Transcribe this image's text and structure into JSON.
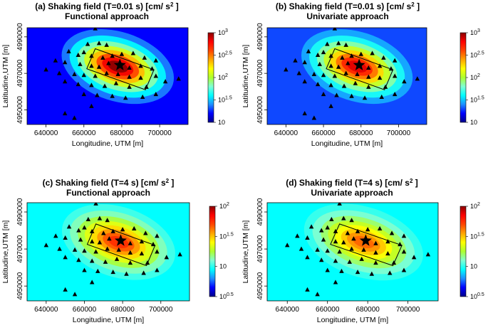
{
  "figure": {
    "colormap": [
      "#00008b",
      "#0000ff",
      "#1e90ff",
      "#00ffff",
      "#7fffd4",
      "#adff2f",
      "#ffff00",
      "#ffa500",
      "#ff4500",
      "#ff0000",
      "#8b0000"
    ]
  },
  "chart_data": [
    {
      "id": "a",
      "type": "heatmap",
      "title_line1": "(a) Shaking field (T=0.01 s) [cm/ s",
      "title_sup": "2",
      "title_end": " ]",
      "title_line2": "Functional approach",
      "xlabel": "Longitudine, UTM [m]",
      "ylabel": "Latitudine,UTM [m]",
      "xlim": [
        630000,
        715000
      ],
      "ylim": [
        4942000,
        4995000
      ],
      "xticks": [
        640000,
        660000,
        680000,
        700000
      ],
      "xtick_labels": [
        "640000",
        "660000",
        "680000",
        "700000"
      ],
      "yticks": [
        4950000,
        4970000,
        4990000
      ],
      "ytick_labels": [
        "4950000",
        "4970000",
        "4990000"
      ],
      "colorbar": {
        "log_min": 1,
        "log_max": 3,
        "ticks": [
          1,
          1.5,
          2,
          2.5,
          3
        ],
        "base_labels": [
          "10",
          "10",
          "10",
          "10",
          "10"
        ],
        "exp_labels": [
          "",
          "1.5",
          "2",
          "2.5",
          "3"
        ]
      },
      "peak_log": 3.0,
      "floor_log": 1.2,
      "epicenter": [
        679000,
        4974500
      ]
    },
    {
      "id": "b",
      "type": "heatmap",
      "title_line1": "(b) Shaking field (T=0.01 s) [cm/ s",
      "title_sup": "2",
      "title_end": " ]",
      "title_line2": "Univariate approach",
      "xlabel": "Longitudine, UTM [m]",
      "ylabel": "Latitudine,UTM [m]",
      "xlim": [
        630000,
        715000
      ],
      "ylim": [
        4942000,
        4995000
      ],
      "xticks": [
        640000,
        660000,
        680000,
        700000
      ],
      "xtick_labels": [
        "640000",
        "660000",
        "680000",
        "700000"
      ],
      "yticks": [
        4950000,
        4970000,
        4990000
      ],
      "ytick_labels": [
        "4950000",
        "4970000",
        "4990000"
      ],
      "colorbar": {
        "log_min": 1,
        "log_max": 3,
        "ticks": [
          1,
          1.5,
          2,
          2.5,
          3
        ],
        "base_labels": [
          "10",
          "10",
          "10",
          "10",
          "10"
        ],
        "exp_labels": [
          "",
          "1.5",
          "2",
          "2.5",
          "3"
        ]
      },
      "peak_log": 2.85,
      "floor_log": 1.3,
      "epicenter": [
        679000,
        4974500
      ]
    },
    {
      "id": "c",
      "type": "heatmap",
      "title_line1": "(c) Shaking field (T=4 s) [cm/ s",
      "title_sup": "2",
      "title_end": " ]",
      "title_line2": "Functional approach",
      "xlabel": "Longitudine, UTM [m]",
      "ylabel": "Latitudine,UTM [m]",
      "xlim": [
        630000,
        715000
      ],
      "ylim": [
        4942000,
        4995000
      ],
      "xticks": [
        640000,
        660000,
        680000,
        700000
      ],
      "xtick_labels": [
        "640000",
        "660000",
        "680000",
        "700000"
      ],
      "yticks": [
        4950000,
        4970000,
        4990000
      ],
      "ytick_labels": [
        "4950000",
        "4970000",
        "4990000"
      ],
      "colorbar": {
        "log_min": 0.5,
        "log_max": 2,
        "ticks": [
          0.5,
          1,
          1.5,
          2
        ],
        "base_labels": [
          "10",
          "10",
          "10",
          "10"
        ],
        "exp_labels": [
          "0.5",
          "",
          "1.5",
          "2"
        ]
      },
      "peak_log": 1.75,
      "floor_log": 0.95,
      "epicenter": [
        679000,
        4974500
      ]
    },
    {
      "id": "d",
      "type": "heatmap",
      "title_line1": "(d) Shaking field (T=4 s) [cm/ s",
      "title_sup": "2",
      "title_end": " ]",
      "title_line2": "Univariate approach",
      "xlabel": "Longitudine, UTM [m]",
      "ylabel": "Latitudine,UTM [m]",
      "xlim": [
        630000,
        715000
      ],
      "ylim": [
        4942000,
        4995000
      ],
      "xticks": [
        640000,
        660000,
        680000,
        700000
      ],
      "xtick_labels": [
        "640000",
        "660000",
        "680000",
        "700000"
      ],
      "yticks": [
        4950000,
        4970000,
        4990000
      ],
      "ytick_labels": [
        "4950000",
        "4970000",
        "4990000"
      ],
      "colorbar": {
        "log_min": 0.5,
        "log_max": 2,
        "ticks": [
          0.5,
          1,
          1.5,
          2
        ],
        "base_labels": [
          "10",
          "10",
          "10",
          "10"
        ],
        "exp_labels": [
          "0.5",
          "",
          "1.5",
          "2"
        ]
      },
      "peak_log": 1.65,
      "floor_log": 0.95,
      "epicenter": [
        679000,
        4974500
      ]
    }
  ],
  "stations": [
    [
      666000,
      4994500
    ],
    [
      662000,
      4986000
    ],
    [
      668000,
      4986500
    ],
    [
      672000,
      4985500
    ],
    [
      652000,
      4982000
    ],
    [
      657000,
      4980000
    ],
    [
      660000,
      4981500
    ],
    [
      664000,
      4979500
    ],
    [
      670000,
      4978500
    ],
    [
      675000,
      4979500
    ],
    [
      680000,
      4980500
    ],
    [
      686000,
      4981000
    ],
    [
      692000,
      4978500
    ],
    [
      698000,
      4977000
    ],
    [
      645000,
      4977000
    ],
    [
      650000,
      4976000
    ],
    [
      658000,
      4975000
    ],
    [
      664000,
      4974000
    ],
    [
      668000,
      4973500
    ],
    [
      673000,
      4975500
    ],
    [
      684000,
      4973000
    ],
    [
      690000,
      4974000
    ],
    [
      696000,
      4972500
    ],
    [
      640000,
      4972000
    ],
    [
      647000,
      4970000
    ],
    [
      655000,
      4969500
    ],
    [
      660000,
      4969000
    ],
    [
      666000,
      4968500
    ],
    [
      672000,
      4970000
    ],
    [
      678000,
      4969500
    ],
    [
      684000,
      4968000
    ],
    [
      690000,
      4967500
    ],
    [
      698000,
      4968500
    ],
    [
      650000,
      4965500
    ],
    [
      657000,
      4964000
    ],
    [
      664000,
      4963500
    ],
    [
      671000,
      4963000
    ],
    [
      677000,
      4964500
    ],
    [
      684000,
      4962500
    ],
    [
      693000,
      4962500
    ],
    [
      703000,
      4965500
    ],
    [
      710000,
      4967000
    ],
    [
      660000,
      4958500
    ],
    [
      667000,
      4958000
    ],
    [
      675000,
      4957500
    ],
    [
      682000,
      4956500
    ],
    [
      691000,
      4957000
    ],
    [
      698000,
      4958500
    ],
    [
      664000,
      4952000
    ],
    [
      650000,
      4948000
    ],
    [
      655000,
      4945500
    ]
  ],
  "rupture": [
    [
      666000,
      4983500
    ],
    [
      697000,
      4972000
    ],
    [
      692500,
      4961000
    ],
    [
      661500,
      4972500
    ]
  ]
}
